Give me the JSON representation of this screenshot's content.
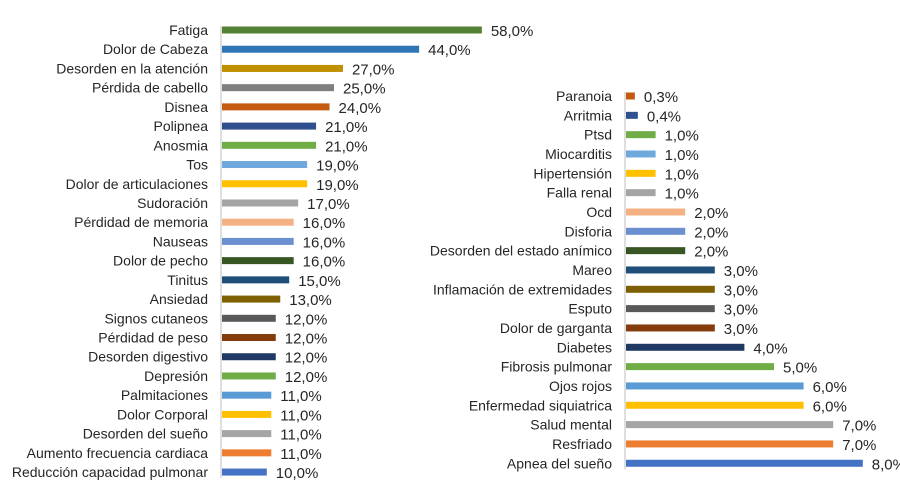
{
  "chart_data": [
    {
      "type": "bar",
      "orientation": "horizontal",
      "grid": false,
      "legend": "none",
      "value_suffix": "%",
      "categories": [
        "Fatiga",
        "Dolor de Cabeza",
        "Desorden en la atención",
        "Pérdida de cabello",
        "Disnea",
        "Polipnea",
        "Anosmia",
        "Tos",
        "Dolor de articulaciones",
        "Sudoración",
        "Pérdidad de memoria",
        "Nauseas",
        "Dolor de pecho",
        "Tinitus",
        "Ansiedad",
        "Signos cutaneos",
        "Pérdidad de peso",
        "Desorden digestivo",
        "Depresión",
        "Palmitaciones",
        "Dolor Corporal",
        "Desorden del sueño",
        "Aumento frecuencia cardiaca",
        "Reducción capacidad pulmonar"
      ],
      "values": [
        58,
        44,
        27,
        25,
        24,
        21,
        21,
        19,
        19,
        17,
        16,
        16,
        16,
        15,
        13,
        12,
        12,
        12,
        12,
        11,
        11,
        11,
        11,
        10
      ],
      "value_labels": [
        "58,0%",
        "44,0%",
        "27,0%",
        "25,0%",
        "24,0%",
        "21,0%",
        "21,0%",
        "19,0%",
        "19,0%",
        "17,0%",
        "16,0%",
        "16,0%",
        "16,0%",
        "15,0%",
        "13,0%",
        "12,0%",
        "12,0%",
        "12,0%",
        "12,0%",
        "11,0%",
        "11,0%",
        "11,0%",
        "11,0%",
        "10,0%"
      ],
      "colors": [
        "#548235",
        "#2e75b6",
        "#bf9000",
        "#7f7f7f",
        "#c55a11",
        "#2f4f8f",
        "#70ad47",
        "#6fa8dc",
        "#ffc000",
        "#a5a5a5",
        "#f4b183",
        "#6b8fd1",
        "#375623",
        "#1f4e79",
        "#7f6000",
        "#595959",
        "#843c0c",
        "#203864",
        "#70ad47",
        "#5b9bd5",
        "#ffc000",
        "#a5a5a5",
        "#ed7d31",
        "#4472c4"
      ]
    },
    {
      "type": "bar",
      "orientation": "horizontal",
      "grid": false,
      "legend": "none",
      "value_suffix": "%",
      "categories": [
        "Paranoia",
        "Arritmia",
        "Ptsd",
        "Miocarditis",
        "Hipertensión",
        "Falla renal",
        "Ocd",
        "Disforia",
        "Desorden del estado anímico",
        "Mareo",
        "Inflamación de extremidades",
        "Esputo",
        "Dolor de garganta",
        "Diabetes",
        "Fibrosis pulmonar",
        "Ojos rojos",
        "Enfermedad siquiatrica",
        "Salud mental",
        "Resfriado",
        "Apnea del sueño"
      ],
      "values": [
        0.3,
        0.4,
        1,
        1,
        1,
        1,
        2,
        2,
        2,
        3,
        3,
        3,
        3,
        4,
        5,
        6,
        6,
        7,
        7,
        8
      ],
      "value_labels": [
        "0,3%",
        "0,4%",
        "1,0%",
        "1,0%",
        "1,0%",
        "1,0%",
        "2,0%",
        "2,0%",
        "2,0%",
        "3,0%",
        "3,0%",
        "3,0%",
        "3,0%",
        "4,0%",
        "5,0%",
        "6,0%",
        "6,0%",
        "7,0%",
        "7,0%",
        "8,0%"
      ],
      "colors": [
        "#c55a11",
        "#2f4f8f",
        "#70ad47",
        "#6fa8dc",
        "#ffc000",
        "#a5a5a5",
        "#f4b183",
        "#6b8fd1",
        "#375623",
        "#1f4e79",
        "#7f6000",
        "#595959",
        "#843c0c",
        "#203864",
        "#70ad47",
        "#5b9bd5",
        "#ffc000",
        "#a5a5a5",
        "#ed7d31",
        "#4472c4"
      ]
    }
  ]
}
